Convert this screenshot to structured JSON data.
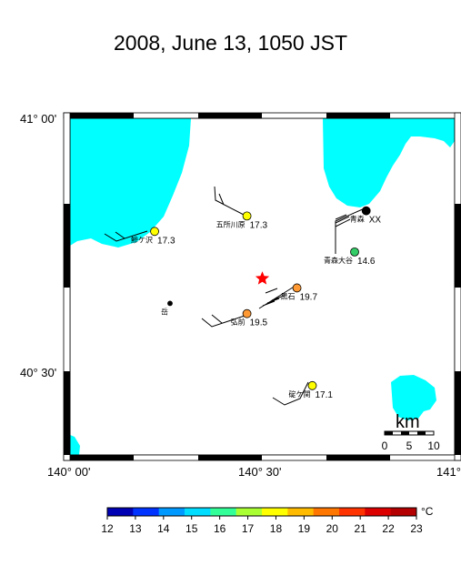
{
  "title": "2008, June 13, 1050 JST",
  "axes": {
    "lat_labels": [
      "41° 00'",
      "40° 30'"
    ],
    "lon_labels": [
      "140° 00'",
      "140° 30'",
      "141°"
    ]
  },
  "stations": [
    {
      "name": "五所川原",
      "value": "17.3",
      "lon": 140.46,
      "lat": 40.81,
      "color": "#ffff00"
    },
    {
      "name": "鰺ケ沢",
      "value": "17.3",
      "lon": 140.22,
      "lat": 40.78,
      "color": "#ffff00"
    },
    {
      "name": "青森",
      "value": "XX",
      "lon": 140.77,
      "lat": 40.82,
      "color": "#000000"
    },
    {
      "name": "青森大谷",
      "value": "14.6",
      "lon": 140.74,
      "lat": 40.74,
      "color": "#33cc66"
    },
    {
      "name": "黒石",
      "value": "19.7",
      "lon": 140.59,
      "lat": 40.67,
      "color": "#ff9933"
    },
    {
      "name": "弘前",
      "value": "19.5",
      "lon": 140.46,
      "lat": 40.62,
      "color": "#ff9933"
    },
    {
      "name": "碇ケ関",
      "value": "17.1",
      "lon": 140.63,
      "lat": 40.48,
      "color": "#ffff00"
    },
    {
      "name": "岳",
      "value": "",
      "lon": 140.26,
      "lat": 40.64,
      "color": "#000000"
    }
  ],
  "epicenter": {
    "lon": 140.5,
    "lat": 40.69,
    "color": "#ff0000"
  },
  "scale_bar": {
    "unit": "km",
    "ticks": [
      "0",
      "5",
      "10"
    ]
  },
  "colorbar": {
    "unit": "°C",
    "ticks": [
      "12",
      "13",
      "14",
      "15",
      "16",
      "17",
      "18",
      "19",
      "20",
      "21",
      "22",
      "23"
    ],
    "colors": [
      "#0000b4",
      "#0033ff",
      "#0099ff",
      "#00ddff",
      "#33ff99",
      "#aaff33",
      "#ffff00",
      "#ffbb00",
      "#ff7700",
      "#ff3300",
      "#dd0000",
      "#b40000"
    ]
  }
}
